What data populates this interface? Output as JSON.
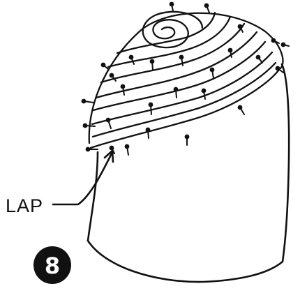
{
  "figure": {
    "callout_label": "LAP",
    "step_number": "8"
  },
  "colors": {
    "ink": "#111111",
    "paper": "#ffffff"
  }
}
